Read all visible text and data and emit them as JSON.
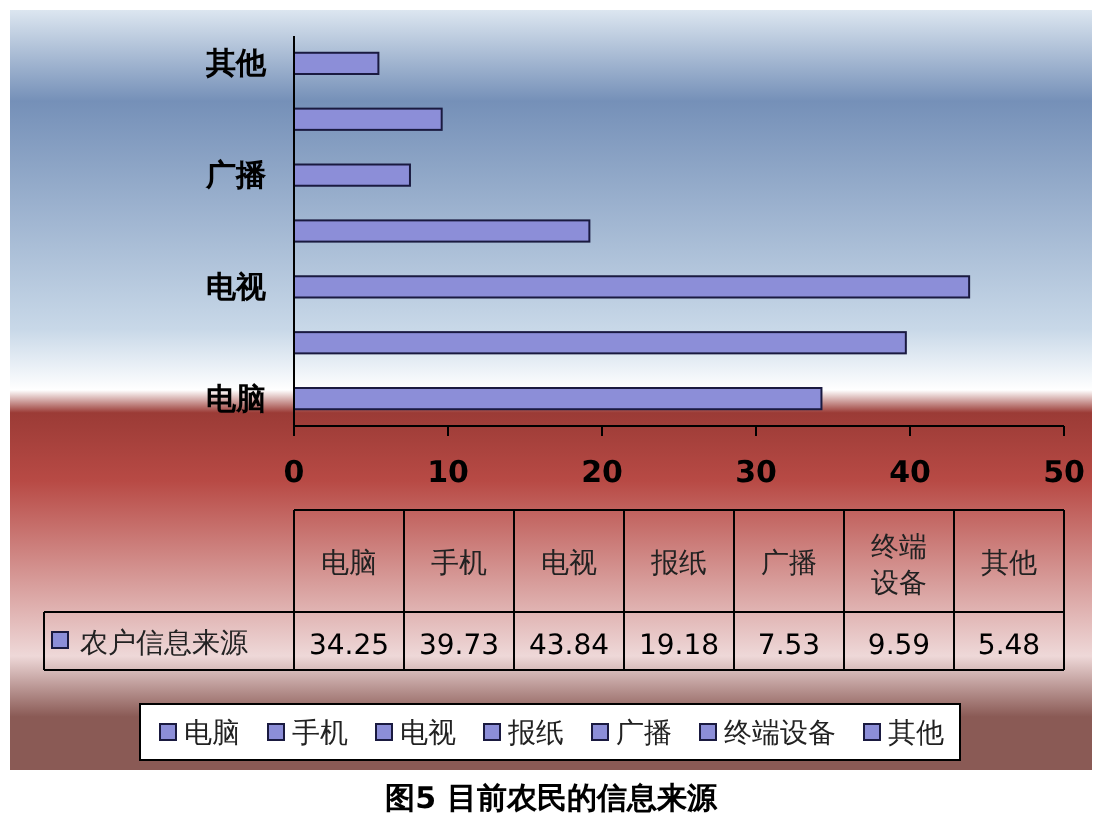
{
  "chart_data": [
    {
      "type": "bar",
      "orientation": "horizontal",
      "title": "图5 目前农民的信息来源",
      "categories": [
        "其他",
        null,
        "广播",
        null,
        "电视",
        null,
        "电脑"
      ],
      "series": [
        {
          "color": "#8c8ed8",
          "values": [
            5.48,
            9.59,
            7.53,
            19.18,
            43.84,
            39.73,
            34.25
          ]
        }
      ],
      "xlim": [
        0,
        50
      ],
      "xticks": [
        0,
        10,
        20,
        30,
        40,
        50
      ],
      "grid": false
    },
    {
      "type": "other",
      "categories": [
        "电脑",
        "手机",
        "电视",
        "报纸",
        "广播",
        "终端设备",
        "其他"
      ],
      "series": [
        {
          "name": "农户信息来源",
          "color": "#8c8ed8",
          "values": [
            34.25,
            39.73,
            43.84,
            19.18,
            7.53,
            9.59,
            5.48
          ]
        }
      ],
      "data_labels": true,
      "annotations": [
        "电脑",
        "手机",
        "电视",
        "报纸",
        "广播",
        "终端设备",
        "其他"
      ]
    }
  ]
}
